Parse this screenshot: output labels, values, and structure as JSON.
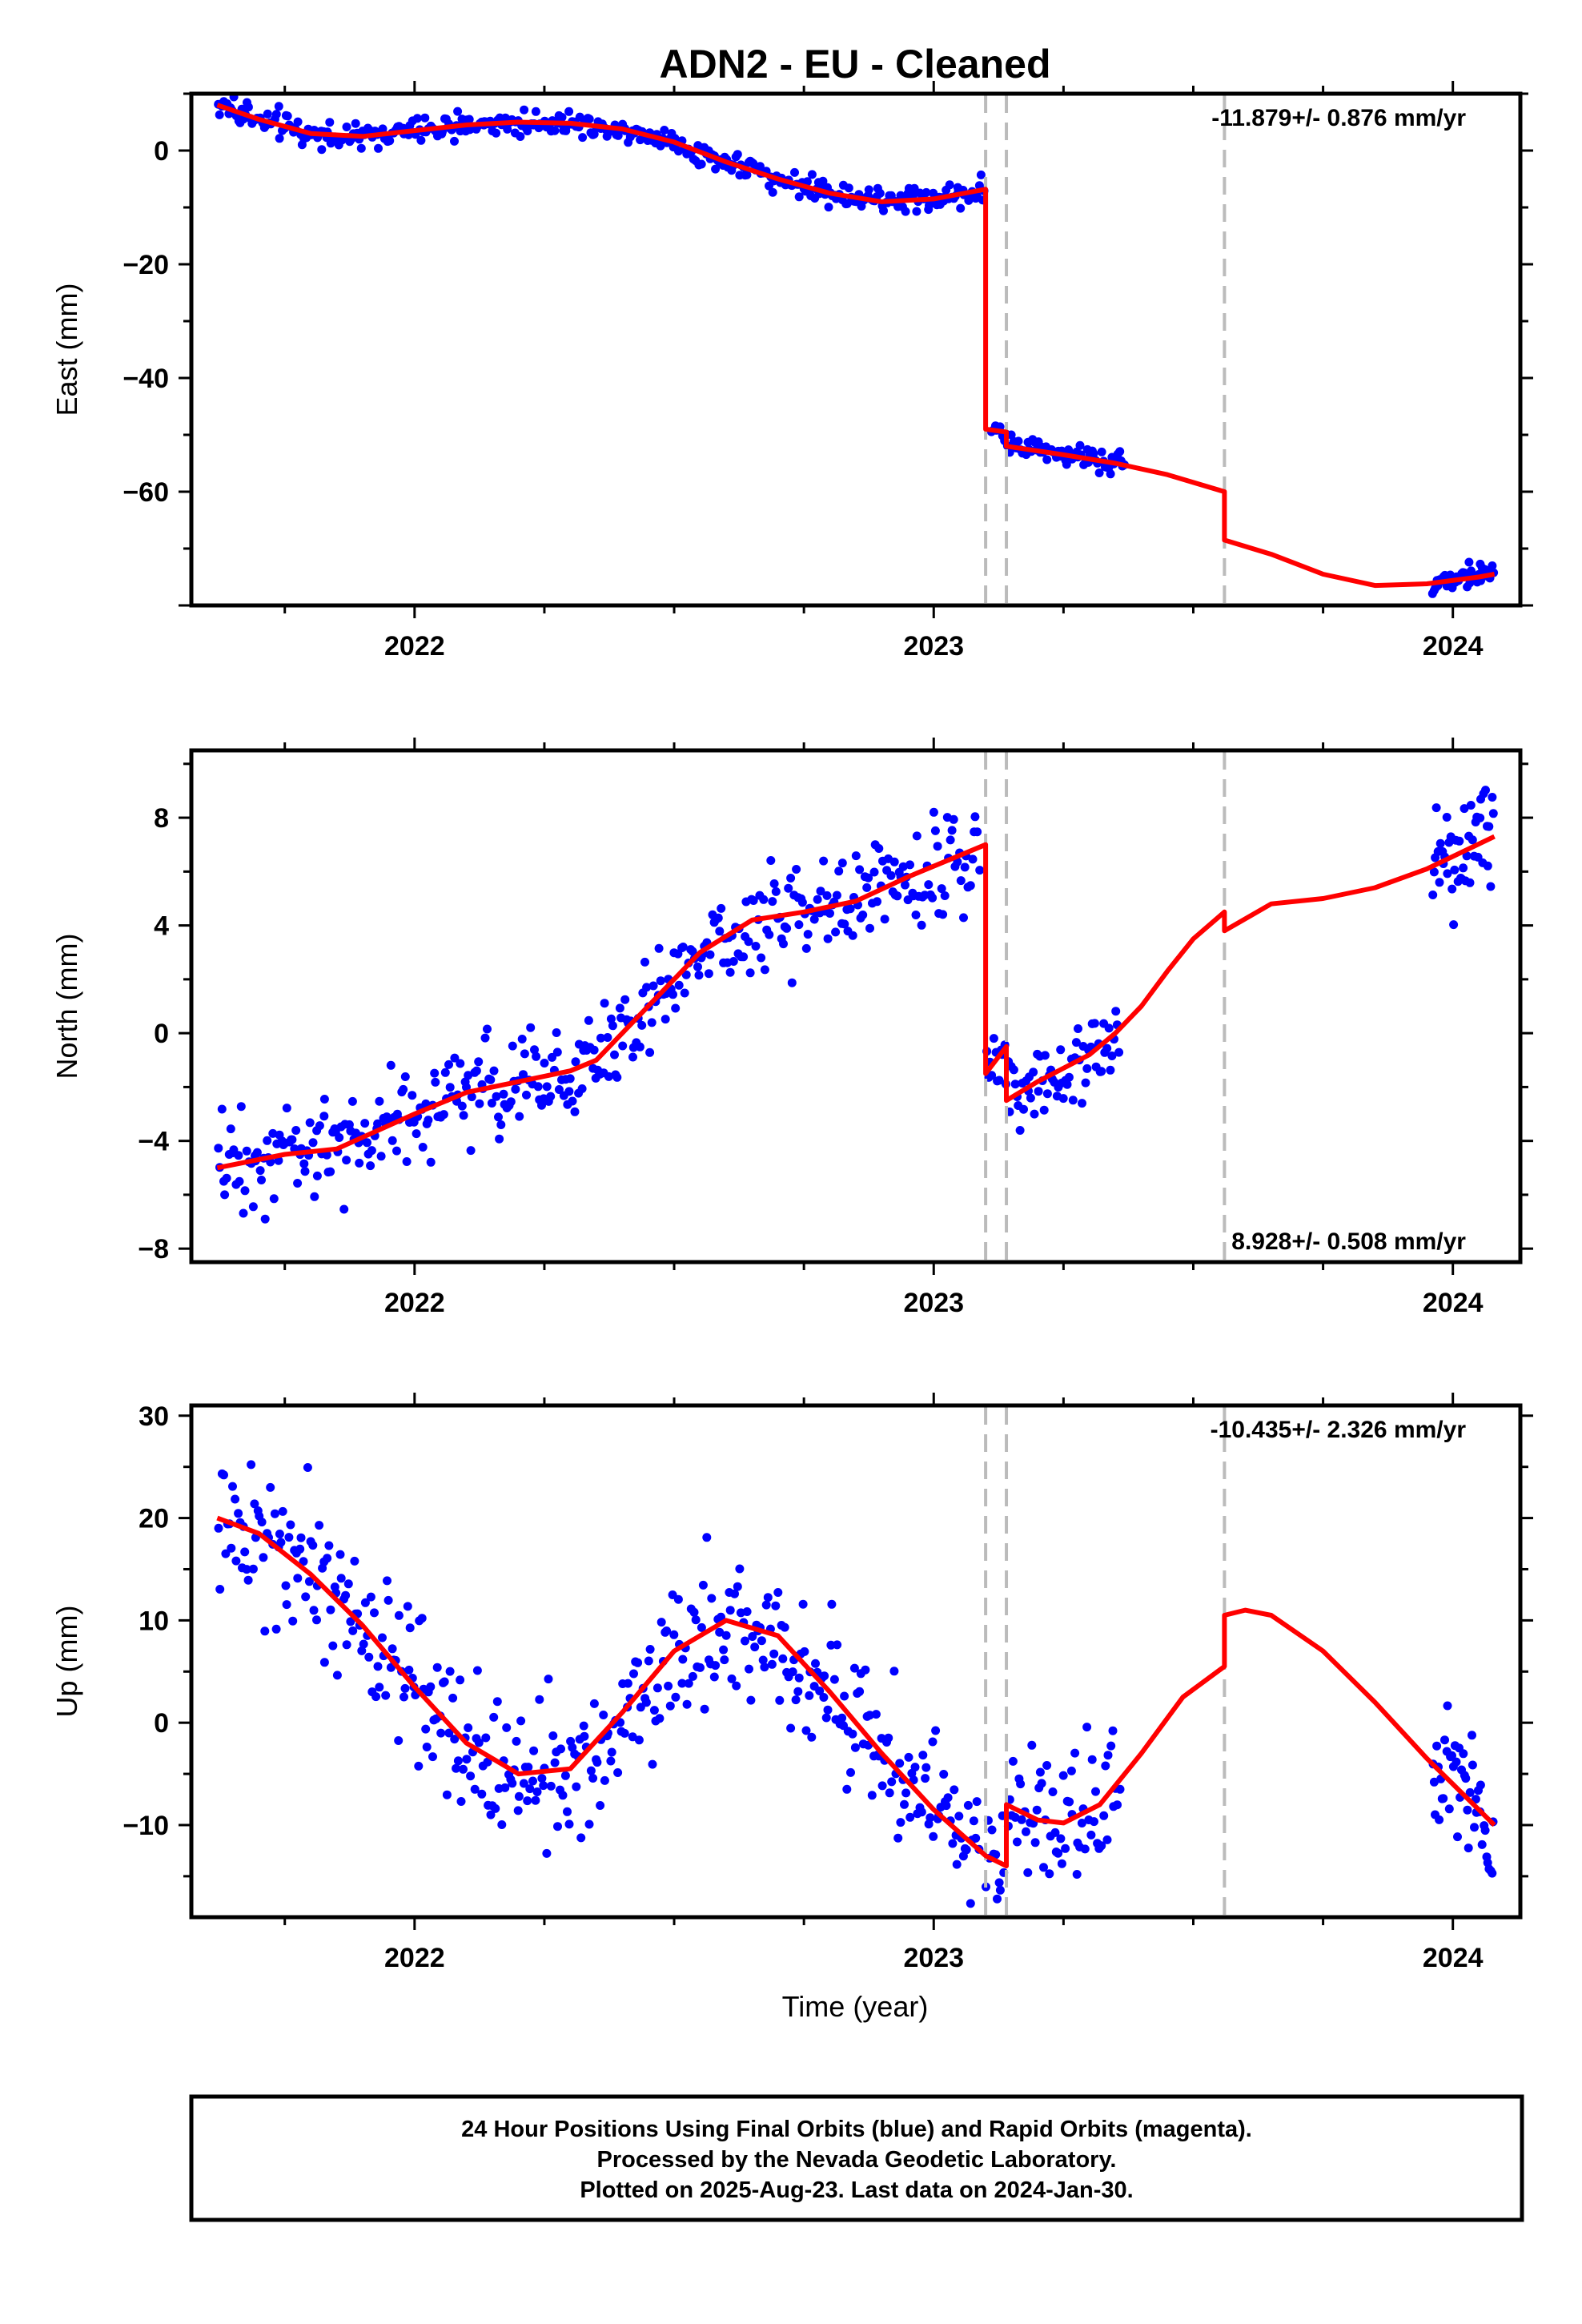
{
  "title": "ADN2  - EU - Cleaned",
  "xlabel": "Time (year)",
  "footer": [
    "24 Hour Positions Using Final Orbits (blue) and Rapid Orbits (magenta).",
    "Processed by the Nevada Geodetic Laboratory.",
    "Plotted on 2025-Aug-23. Last data on 2024-Jan-30."
  ],
  "colors": {
    "points": "#0000ff",
    "model": "#ff0000",
    "breaks": "#bbbbbb",
    "frame": "#000000"
  },
  "chart_data": [
    {
      "type": "scatter",
      "component": "East",
      "ylabel": "East (mm)",
      "rate_text": "-11.879+/- 0.876 mm/yr",
      "rate_position": "top-right",
      "xlim": [
        2021.57,
        2024.13
      ],
      "ylim": [
        -80,
        10
      ],
      "yticks": [
        0,
        -20,
        -40,
        -60
      ],
      "xticks": [
        2022,
        2023,
        2024
      ],
      "breaks": [
        2023.1,
        2023.14,
        2023.56
      ],
      "observations": [
        {
          "start": 2021.62,
          "end": 2023.1,
          "count": 420,
          "noise": 1.1,
          "model_offset": 0.0
        },
        {
          "start": 2023.11,
          "end": 2023.37,
          "count": 75,
          "noise": 1.1,
          "model_offset": 0.2
        },
        {
          "start": 2023.96,
          "end": 2024.08,
          "count": 45,
          "noise": 1.0,
          "model_offset": 0.3
        }
      ],
      "model": [
        [
          [
            2021.62,
            8.0
          ],
          [
            2021.7,
            5.5
          ],
          [
            2021.8,
            3.0
          ],
          [
            2021.9,
            2.5
          ],
          [
            2022.0,
            3.5
          ],
          [
            2022.1,
            4.5
          ],
          [
            2022.2,
            5.0
          ],
          [
            2022.3,
            4.8
          ],
          [
            2022.4,
            3.8
          ],
          [
            2022.5,
            1.5
          ],
          [
            2022.6,
            -2.0
          ],
          [
            2022.7,
            -5.0
          ],
          [
            2022.8,
            -7.5
          ],
          [
            2022.9,
            -9.0
          ],
          [
            2023.0,
            -8.5
          ],
          [
            2023.1,
            -6.8
          ]
        ],
        [
          [
            2023.1,
            -49.0
          ],
          [
            2023.14,
            -49.5
          ]
        ],
        [
          [
            2023.14,
            -52.0
          ],
          [
            2023.25,
            -53.5
          ],
          [
            2023.35,
            -55.0
          ],
          [
            2023.45,
            -57.0
          ],
          [
            2023.56,
            -60.0
          ]
        ],
        [
          [
            2023.56,
            -68.5
          ],
          [
            2023.65,
            -71.0
          ],
          [
            2023.75,
            -74.5
          ],
          [
            2023.85,
            -76.5
          ],
          [
            2023.95,
            -76.2
          ],
          [
            2024.05,
            -75.0
          ],
          [
            2024.08,
            -74.5
          ]
        ]
      ]
    },
    {
      "type": "scatter",
      "component": "North",
      "ylabel": "North (mm)",
      "rate_text": "8.928+/- 0.508 mm/yr",
      "rate_position": "bottom-right",
      "xlim": [
        2021.57,
        2024.13
      ],
      "ylim": [
        -8.5,
        10.5
      ],
      "yticks": [
        8,
        4,
        0,
        -4,
        -8
      ],
      "xticks": [
        2022,
        2023,
        2024
      ],
      "breaks": [
        2023.1,
        2023.14,
        2023.56
      ],
      "observations": [
        {
          "start": 2021.62,
          "end": 2023.09,
          "count": 420,
          "noise": 0.9,
          "model_offset": 0.0
        },
        {
          "start": 2023.1,
          "end": 2023.36,
          "count": 75,
          "noise": 0.8,
          "model_offset": 0.0
        },
        {
          "start": 2023.96,
          "end": 2024.08,
          "count": 45,
          "noise": 1.0,
          "model_offset": 0.0
        }
      ],
      "model": [
        [
          [
            2021.62,
            -5.0
          ],
          [
            2021.75,
            -4.5
          ],
          [
            2021.85,
            -4.3
          ],
          [
            2022.0,
            -3.0
          ],
          [
            2022.1,
            -2.2
          ],
          [
            2022.2,
            -1.8
          ],
          [
            2022.3,
            -1.4
          ],
          [
            2022.35,
            -1.0
          ],
          [
            2022.45,
            1.0
          ],
          [
            2022.55,
            3.0
          ],
          [
            2022.65,
            4.2
          ],
          [
            2022.75,
            4.5
          ],
          [
            2022.85,
            4.9
          ],
          [
            2022.95,
            5.8
          ],
          [
            2023.05,
            6.6
          ],
          [
            2023.1,
            7.0
          ]
        ],
        [
          [
            2023.1,
            -1.5
          ],
          [
            2023.14,
            -0.5
          ]
        ],
        [
          [
            2023.14,
            -2.5
          ],
          [
            2023.2,
            -1.8
          ],
          [
            2023.3,
            -0.8
          ],
          [
            2023.35,
            0.0
          ],
          [
            2023.4,
            1.0
          ],
          [
            2023.45,
            2.3
          ],
          [
            2023.5,
            3.5
          ],
          [
            2023.56,
            4.5
          ]
        ],
        [
          [
            2023.56,
            3.8
          ],
          [
            2023.65,
            4.8
          ],
          [
            2023.75,
            5.0
          ],
          [
            2023.85,
            5.4
          ],
          [
            2023.95,
            6.1
          ],
          [
            2024.08,
            7.3
          ]
        ]
      ]
    },
    {
      "type": "scatter",
      "component": "Up",
      "ylabel": "Up (mm)",
      "rate_text": "-10.435+/- 2.326 mm/yr",
      "rate_position": "top-right",
      "xlim": [
        2021.57,
        2024.13
      ],
      "ylim": [
        -19,
        31
      ],
      "yticks": [
        30,
        20,
        10,
        0,
        -10
      ],
      "xticks": [
        2022,
        2023,
        2024
      ],
      "breaks": [
        2023.1,
        2023.14,
        2023.56
      ],
      "observations": [
        {
          "start": 2021.62,
          "end": 2023.09,
          "count": 420,
          "noise": 3.5,
          "model_offset": 0.0
        },
        {
          "start": 2023.1,
          "end": 2023.36,
          "count": 75,
          "noise": 3.0,
          "model_offset": 0.0
        },
        {
          "start": 2023.96,
          "end": 2024.08,
          "count": 45,
          "noise": 3.0,
          "model_offset": 0.0
        }
      ],
      "model": [
        [
          [
            2021.62,
            20.0
          ],
          [
            2021.7,
            18.5
          ],
          [
            2021.8,
            14.5
          ],
          [
            2021.9,
            9.5
          ],
          [
            2022.0,
            3.5
          ],
          [
            2022.1,
            -2.0
          ],
          [
            2022.2,
            -5.0
          ],
          [
            2022.3,
            -4.5
          ],
          [
            2022.4,
            1.0
          ],
          [
            2022.5,
            7.0
          ],
          [
            2022.6,
            10.0
          ],
          [
            2022.7,
            8.5
          ],
          [
            2022.8,
            3.0
          ],
          [
            2022.9,
            -3.0
          ],
          [
            2023.0,
            -8.5
          ],
          [
            2023.1,
            -13.0
          ],
          [
            2023.14,
            -14.0
          ]
        ],
        [
          [
            2023.14,
            -8.0
          ],
          [
            2023.2,
            -9.5
          ],
          [
            2023.25,
            -9.8
          ],
          [
            2023.32,
            -8.0
          ],
          [
            2023.4,
            -3.0
          ],
          [
            2023.48,
            2.5
          ],
          [
            2023.56,
            5.5
          ]
        ],
        [
          [
            2023.56,
            10.5
          ],
          [
            2023.6,
            11.0
          ],
          [
            2023.65,
            10.5
          ],
          [
            2023.75,
            7.0
          ],
          [
            2023.85,
            2.0
          ],
          [
            2023.95,
            -3.5
          ],
          [
            2024.08,
            -10.0
          ]
        ]
      ]
    }
  ]
}
